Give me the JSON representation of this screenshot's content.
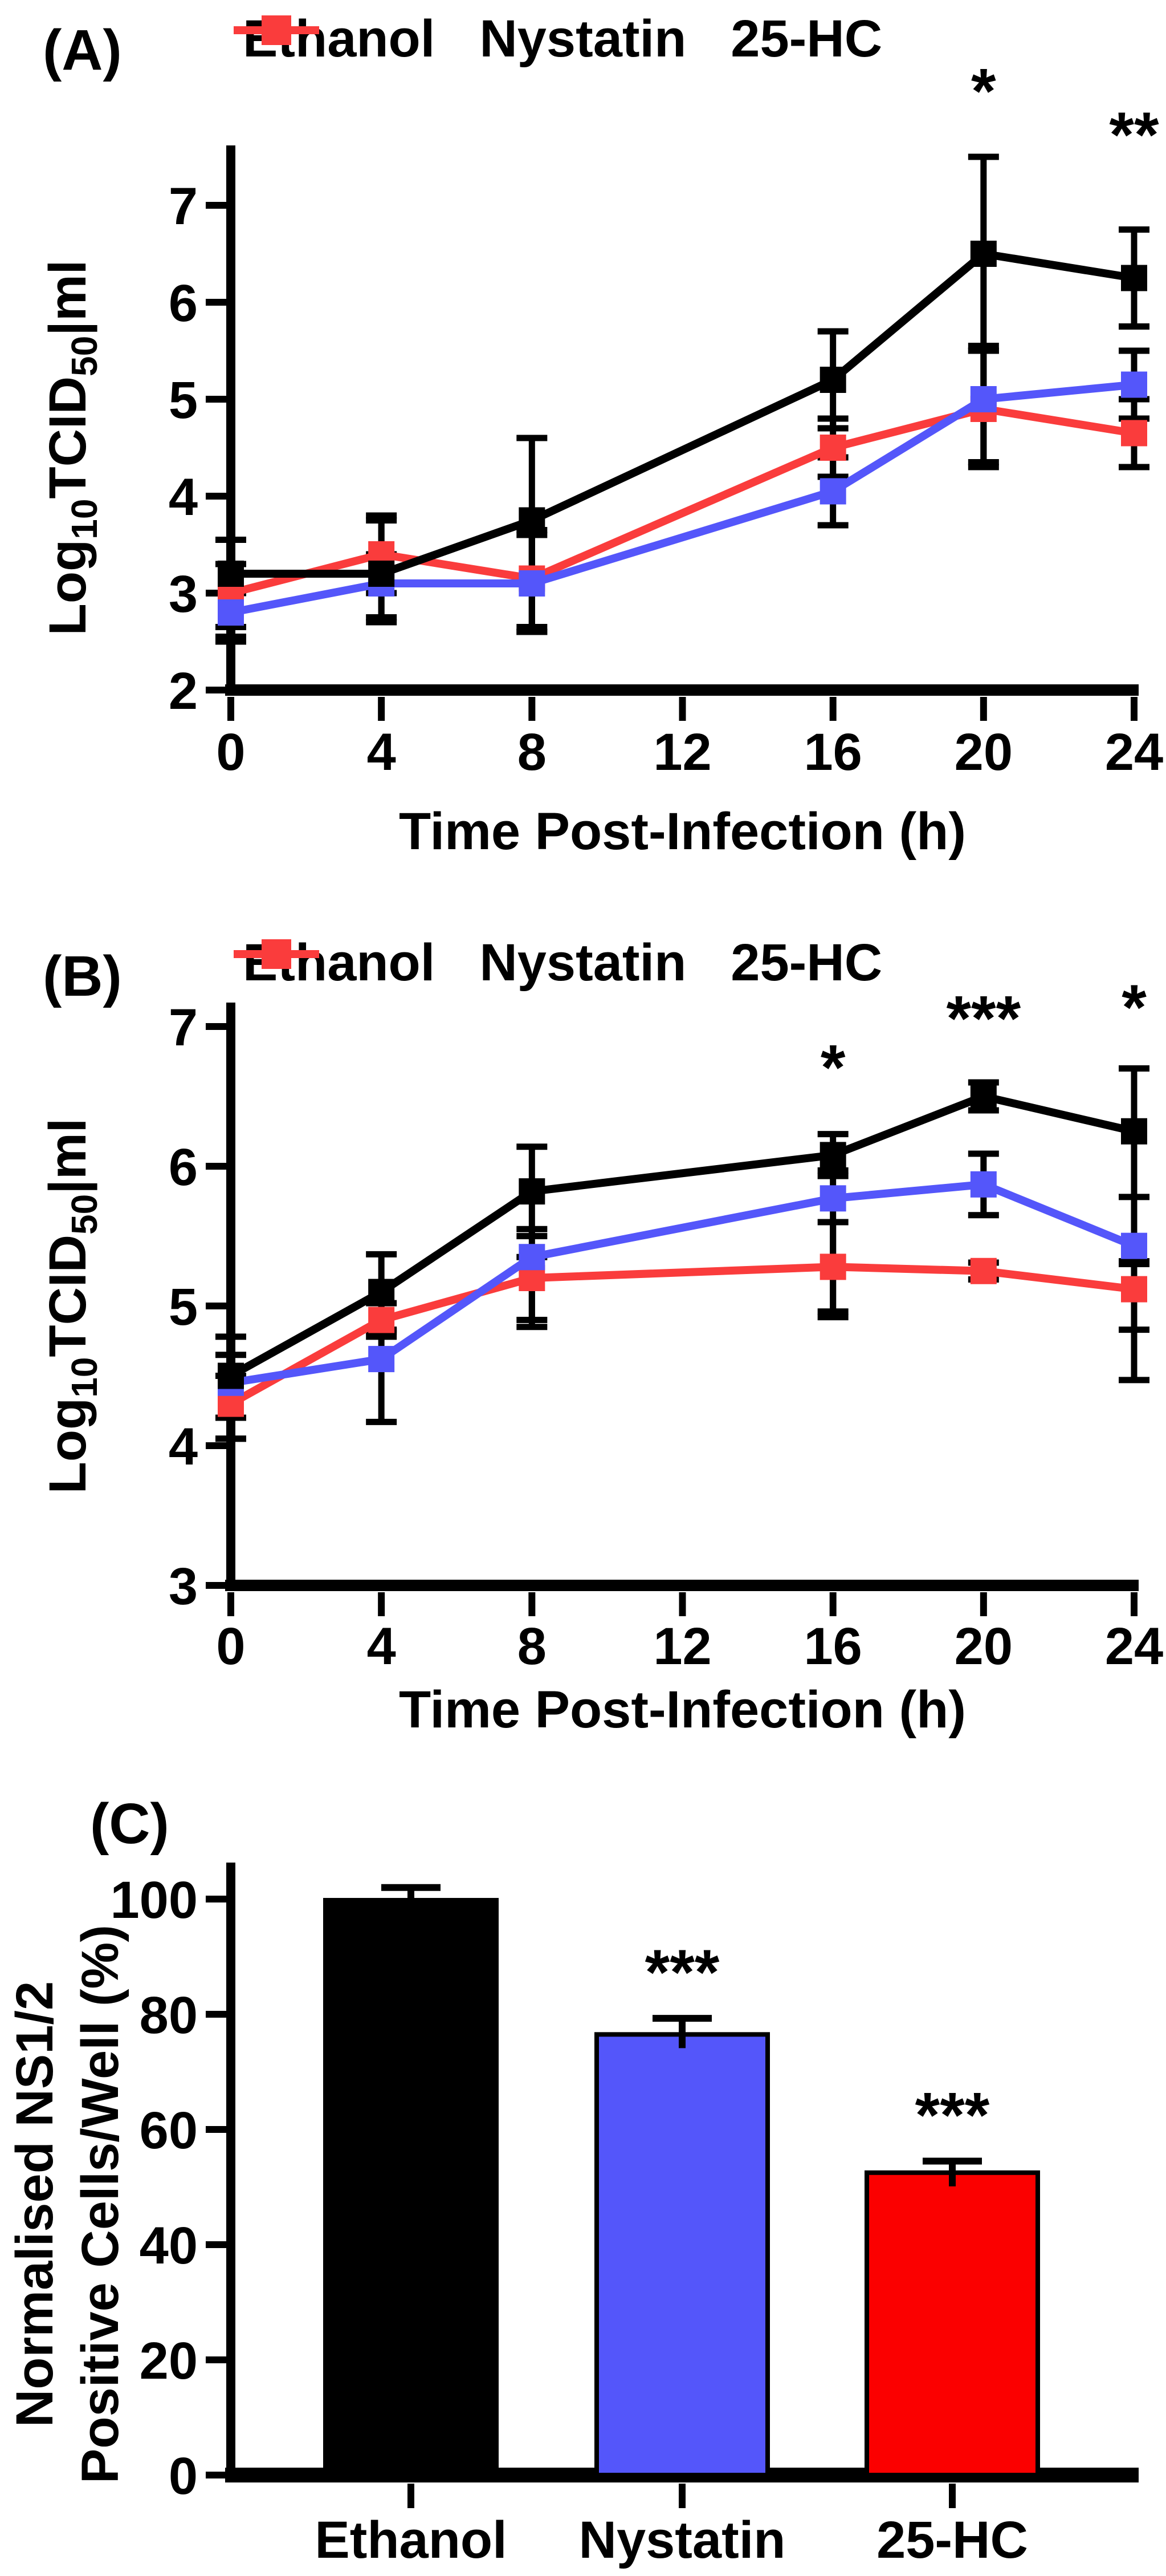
{
  "figure_title": "",
  "chart_data": [
    {
      "panel_label": "(A)",
      "type": "line",
      "xlabel": "Time Post-Infection  (h)",
      "ylabel_plain": "Log10TCID50|ml",
      "ylabel_parts": [
        [
          "Log",
          false
        ],
        [
          "10",
          true
        ],
        [
          "TCID",
          false
        ],
        [
          "50",
          true
        ],
        [
          "|ml",
          false
        ]
      ],
      "xlim": [
        0,
        24
      ],
      "ylim": [
        2,
        7
      ],
      "xticks": [
        0,
        4,
        8,
        12,
        16,
        20,
        24
      ],
      "yticks": [
        2,
        3,
        4,
        5,
        6,
        7
      ],
      "x": [
        0,
        4,
        8,
        16,
        20,
        24
      ],
      "legend": [
        "Ethanol",
        "Nystatin",
        "25-HC"
      ],
      "legend_position": "top",
      "grid": false,
      "series": [
        {
          "name": "Ethanol",
          "color": "#000000",
          "values": [
            3.2,
            3.2,
            3.75,
            5.2,
            6.5,
            6.25
          ],
          "err_up": [
            0.35,
            0.55,
            0.85,
            0.5,
            1.0,
            0.5
          ],
          "err_dn": [
            0.65,
            0.5,
            1.1,
            0.5,
            1.0,
            0.5
          ]
        },
        {
          "name": "Nystatin",
          "color": "#5456fa",
          "values": [
            2.8,
            3.1,
            3.1,
            4.05,
            5.0,
            5.15
          ],
          "err_up": [
            0.2,
            0.3,
            0.5,
            0.35,
            0.55,
            0.35
          ],
          "err_dn": [
            0.3,
            0.35,
            0.5,
            0.35,
            0.7,
            0.35
          ]
        },
        {
          "name": "25-HC",
          "color": "#fa3c3c",
          "values": [
            3.0,
            3.4,
            3.15,
            4.5,
            4.9,
            4.65
          ],
          "err_up": [
            0.3,
            0.4,
            0.5,
            0.3,
            0.6,
            0.35
          ],
          "err_dn": [
            0.35,
            0.4,
            0.55,
            0.3,
            0.55,
            0.35
          ]
        }
      ],
      "annotations": [
        {
          "text": "*",
          "x": 20,
          "value": 7.95
        },
        {
          "text": "**",
          "x": 24,
          "value": 7.5
        }
      ]
    },
    {
      "panel_label": "(B)",
      "type": "line",
      "xlabel": "Time Post-Infection  (h)",
      "ylabel_plain": "Log10TCID50|ml",
      "ylabel_parts": [
        [
          "Log",
          false
        ],
        [
          "10",
          true
        ],
        [
          "TCID",
          false
        ],
        [
          "50",
          true
        ],
        [
          "|ml",
          false
        ]
      ],
      "xlim": [
        0,
        24
      ],
      "ylim": [
        3,
        7
      ],
      "xticks": [
        0,
        4,
        8,
        12,
        16,
        20,
        24
      ],
      "yticks": [
        3,
        4,
        5,
        6,
        7
      ],
      "x": [
        0,
        4,
        8,
        16,
        20,
        24
      ],
      "legend": [
        "Ethanol",
        "Nystatin",
        "25-HC"
      ],
      "legend_position": "top",
      "grid": false,
      "series": [
        {
          "name": "Ethanol",
          "color": "#000000",
          "values": [
            4.5,
            5.1,
            5.82,
            6.08,
            6.5,
            6.25
          ],
          "err_up": [
            0.28,
            0.27,
            0.32,
            0.15,
            0.1,
            0.45
          ],
          "err_dn": [
            0.45,
            0.27,
            0.32,
            0.15,
            0.1,
            0.95
          ]
        },
        {
          "name": "Nystatin",
          "color": "#5456fa",
          "values": [
            4.45,
            4.62,
            5.35,
            5.77,
            5.87,
            5.43
          ],
          "err_up": [
            0.2,
            0.2,
            0.2,
            0.2,
            0.22,
            0.35
          ],
          "err_dn": [
            0.25,
            0.45,
            0.45,
            0.85,
            0.22,
            0.6
          ]
        },
        {
          "name": "25-HC",
          "color": "#fa3c3c",
          "values": [
            4.3,
            4.9,
            5.2,
            5.28,
            5.25,
            5.12
          ],
          "err_up": [
            0.2,
            0.12,
            0.15,
            0.32,
            0.06,
            0.2
          ],
          "err_dn": [
            0.25,
            0.12,
            0.35,
            0.32,
            0.06,
            0.65
          ]
        }
      ],
      "annotations": [
        {
          "text": "*",
          "x": 16,
          "value": 6.55
        },
        {
          "text": "***",
          "x": 20,
          "value": 6.9
        },
        {
          "text": "*",
          "x": 24,
          "value": 6.98
        }
      ]
    },
    {
      "panel_label": "(C)",
      "type": "bar",
      "ylabel_lines": [
        "Normalised NS1/2",
        "Positive Cells/Well (%)"
      ],
      "categories": [
        "Ethanol",
        "Nystatin",
        "25-HC"
      ],
      "values": [
        99.8,
        76.5,
        52.5
      ],
      "errors": [
        2.2,
        2.8,
        2.0
      ],
      "colors": [
        "#000000",
        "#5456fa",
        "#fb0000"
      ],
      "yticks": [
        0,
        20,
        40,
        60,
        80,
        100
      ],
      "ylim": [
        0,
        110
      ],
      "grid": false,
      "annotations": [
        {
          "category_index": 1,
          "text": "***"
        },
        {
          "category_index": 2,
          "text": "***"
        }
      ]
    }
  ]
}
